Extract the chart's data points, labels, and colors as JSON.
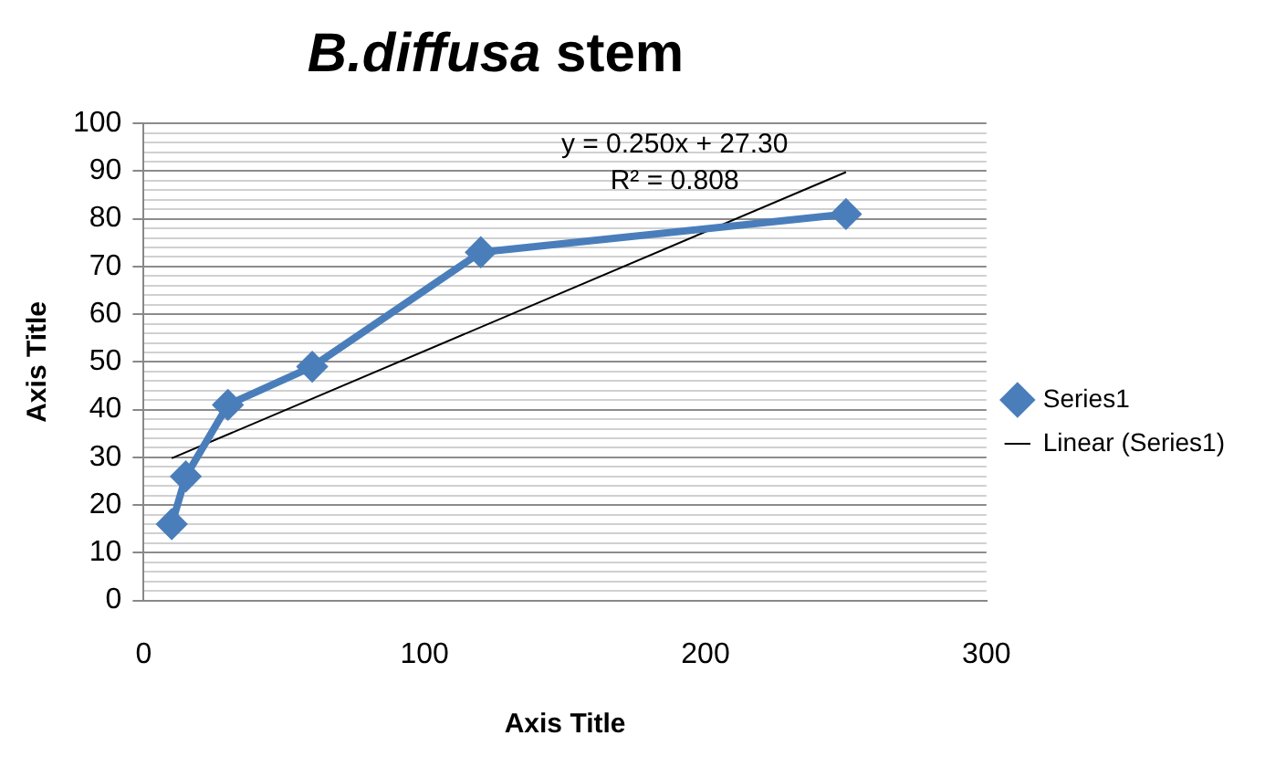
{
  "chart_data": {
    "type": "line",
    "title": "B.diffusa stem",
    "xlabel": "Axis Title",
    "ylabel": "Axis Title",
    "x": [
      10,
      15,
      30,
      60,
      120,
      250
    ],
    "series": [
      {
        "name": "Series1",
        "color": "#4a7ebb",
        "values": [
          16,
          26,
          41,
          49,
          73,
          81
        ],
        "marker": "diamond"
      },
      {
        "name": "Linear (Series1)",
        "type": "line",
        "color": "#000000",
        "x": [
          10,
          250
        ],
        "values": [
          29.8,
          89.8
        ],
        "marker": "none"
      }
    ],
    "annotations": [
      "y = 0.250x + 27.30",
      "R² = 0.808"
    ],
    "xlim": [
      0,
      300
    ],
    "xticks": [
      0,
      100,
      200,
      300
    ],
    "ylim": [
      0,
      100
    ],
    "yticks": [
      0,
      {
        "value": 2,
        "label": null
      },
      {
        "value": 4,
        "label": null
      },
      {
        "value": 6,
        "label": null
      },
      {
        "value": 8,
        "label": null
      },
      10,
      {
        "value": 12,
        "label": null
      },
      {
        "value": 14,
        "label": null
      },
      {
        "value": 16,
        "label": null
      },
      {
        "value": 18,
        "label": null
      },
      20,
      {
        "value": 22,
        "label": null
      },
      {
        "value": 24,
        "label": null
      },
      {
        "value": 26,
        "label": null
      },
      {
        "value": 28,
        "label": null
      },
      30,
      {
        "value": 32,
        "label": null
      },
      {
        "value": 34,
        "label": null
      },
      {
        "value": 36,
        "label": null
      },
      {
        "value": 38,
        "label": null
      },
      40,
      {
        "value": 42,
        "label": null
      },
      {
        "value": 44,
        "label": null
      },
      {
        "value": 46,
        "label": null
      },
      {
        "value": 48,
        "label": null
      },
      50,
      {
        "value": 52,
        "label": null
      },
      {
        "value": 54,
        "label": null
      },
      {
        "value": 56,
        "label": null
      },
      {
        "value": 58,
        "label": null
      },
      60,
      {
        "value": 62,
        "label": null
      },
      {
        "value": 64,
        "label": null
      },
      {
        "value": 66,
        "label": null
      },
      {
        "value": 68,
        "label": null
      },
      70,
      {
        "value": 72,
        "label": null
      },
      {
        "value": 74,
        "label": null
      },
      {
        "value": 76,
        "label": null
      },
      {
        "value": 78,
        "label": null
      },
      80,
      {
        "value": 82,
        "label": null
      },
      {
        "value": 84,
        "label": null
      },
      {
        "value": 86,
        "label": null
      },
      {
        "value": 88,
        "label": null
      },
      90,
      {
        "value": 92,
        "label": null
      },
      {
        "value": 94,
        "label": null
      },
      {
        "value": 96,
        "label": null
      },
      {
        "value": 98,
        "label": null
      },
      100
    ],
    "grid": "y",
    "legend": "right",
    "line_style": "solid"
  }
}
